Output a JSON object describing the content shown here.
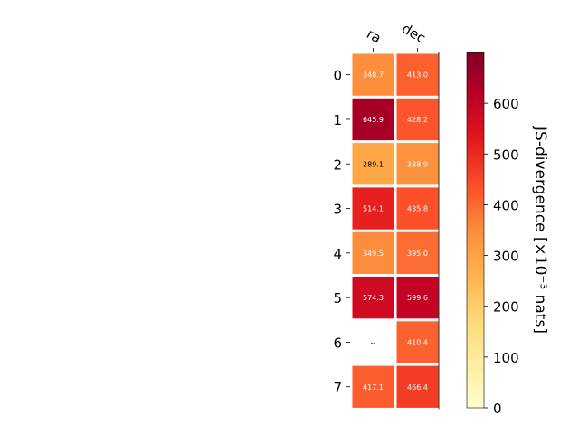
{
  "chart_data": {
    "type": "heatmap",
    "title": "",
    "columns": [
      "ra",
      "dec"
    ],
    "rows": [
      "0",
      "1",
      "2",
      "3",
      "4",
      "5",
      "6",
      "7"
    ],
    "values": [
      [
        348.7,
        413.0
      ],
      [
        645.9,
        428.2
      ],
      [
        289.1,
        338.9
      ],
      [
        514.1,
        435.8
      ],
      [
        349.5,
        395.0
      ],
      [
        574.3,
        599.6
      ],
      [
        null,
        410.4
      ],
      [
        417.1,
        466.4
      ]
    ],
    "cell_labels": [
      [
        "348.7",
        "413.0"
      ],
      [
        "645.9",
        "428.2"
      ],
      [
        "289.1",
        "338.9"
      ],
      [
        "514.1",
        "435.8"
      ],
      [
        "349.5",
        "395.0"
      ],
      [
        "574.3",
        "599.6"
      ],
      [
        "--",
        "410.4"
      ],
      [
        "417.1",
        "466.4"
      ]
    ],
    "colorbar": {
      "label": "JS-divergence [×10⁻³ nats]",
      "range": [
        0,
        700
      ],
      "ticks": [
        "0",
        "100",
        "200",
        "300",
        "400",
        "500",
        "600"
      ],
      "colormap": "YlOrRd"
    }
  }
}
